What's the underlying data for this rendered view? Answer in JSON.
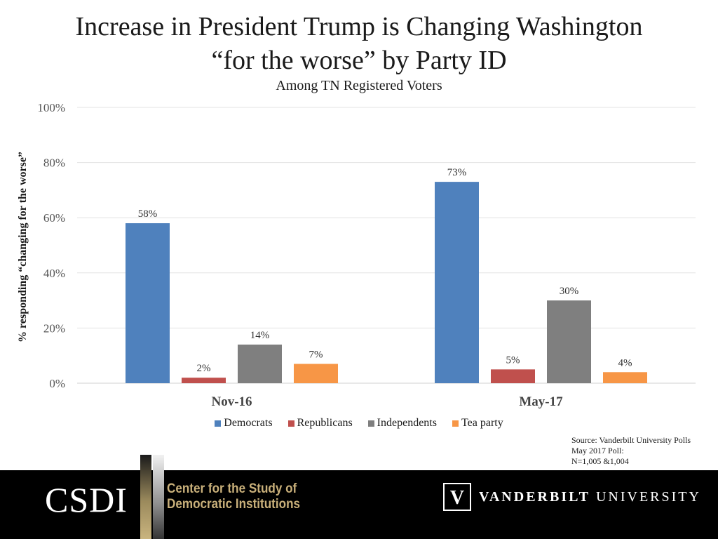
{
  "header": {
    "title_line1": "Increase in President Trump is Changing Washington",
    "title_line2": "“for the worse” by Party ID",
    "subtitle": "Among TN Registered Voters"
  },
  "chart_data": {
    "type": "bar",
    "title": "Increase in President Trump is Changing Washington “for the worse” by Party ID",
    "subtitle": "Among TN Registered Voters",
    "xlabel": "",
    "ylabel": "% responding “changing for the worse”",
    "ylim": [
      0,
      100
    ],
    "yticks": [
      0,
      20,
      40,
      60,
      80,
      100
    ],
    "ytick_labels": [
      "0%",
      "20%",
      "40%",
      "60%",
      "80%",
      "100%"
    ],
    "grid": true,
    "legend_position": "bottom",
    "categories": [
      "Nov-16",
      "May-17"
    ],
    "series": [
      {
        "name": "Democrats",
        "color": "#4f81bd",
        "values": [
          58,
          73
        ],
        "labels": [
          "58%",
          "73%"
        ]
      },
      {
        "name": "Republicans",
        "color": "#c0504d",
        "values": [
          2,
          5
        ],
        "labels": [
          "2%",
          "5%"
        ]
      },
      {
        "name": "Independents",
        "color": "#7f7f7f",
        "values": [
          14,
          30
        ],
        "labels": [
          "14%",
          "30%"
        ]
      },
      {
        "name": "Tea party",
        "color": "#f79646",
        "values": [
          7,
          4
        ],
        "labels": [
          "7%",
          "4%"
        ]
      }
    ]
  },
  "source": {
    "line1": "Source: Vanderbilt University Polls",
    "line2": "May 2017 Poll:",
    "line3": "N=1,005 &1,004"
  },
  "footer": {
    "csdi": "CSDI",
    "center_line1": "Center for the Study of",
    "center_line2": "Democratic Institutions",
    "vu_bold": "VANDERBILT",
    "vu_light": "UNIVERSITY",
    "vu_logo_letter": "V"
  }
}
